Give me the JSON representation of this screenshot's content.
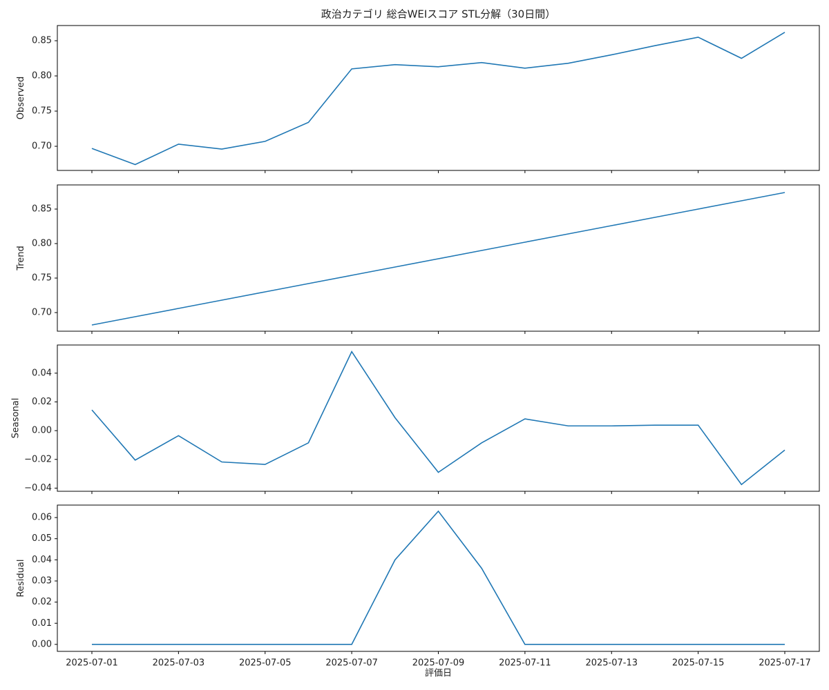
{
  "chart_data": [
    {
      "type": "line",
      "title": "政治カテゴリ 総合WEIスコア STL分解（30日間）",
      "ylabel": "Observed",
      "x": [
        "2025-07-01",
        "2025-07-02",
        "2025-07-03",
        "2025-07-04",
        "2025-07-05",
        "2025-07-06",
        "2025-07-07",
        "2025-07-08",
        "2025-07-09",
        "2025-07-10",
        "2025-07-11",
        "2025-07-12",
        "2025-07-13",
        "2025-07-14",
        "2025-07-15",
        "2025-07-16",
        "2025-07-17"
      ],
      "series": [
        {
          "color": "#1f77b4",
          "values": [
            0.697,
            0.674,
            0.703,
            0.696,
            0.707,
            0.734,
            0.81,
            0.816,
            0.813,
            0.819,
            0.811,
            0.818,
            0.83,
            0.843,
            0.855,
            0.825,
            0.862
          ]
        }
      ],
      "ylim": [
        0.6657,
        0.8716
      ],
      "yticks": [
        {
          "value": 0.7,
          "label": "0.70"
        },
        {
          "value": 0.75,
          "label": "0.75"
        },
        {
          "value": 0.8,
          "label": "0.80"
        },
        {
          "value": 0.85,
          "label": "0.85"
        }
      ]
    },
    {
      "type": "line",
      "ylabel": "Trend",
      "x": [
        "2025-07-01",
        "2025-07-02",
        "2025-07-03",
        "2025-07-04",
        "2025-07-05",
        "2025-07-06",
        "2025-07-07",
        "2025-07-08",
        "2025-07-09",
        "2025-07-10",
        "2025-07-11",
        "2025-07-12",
        "2025-07-13",
        "2025-07-14",
        "2025-07-15",
        "2025-07-16",
        "2025-07-17"
      ],
      "series": [
        {
          "color": "#1f77b4",
          "values": [
            0.682,
            0.694,
            0.706,
            0.718,
            0.73,
            0.742,
            0.754,
            0.766,
            0.778,
            0.79,
            0.802,
            0.814,
            0.826,
            0.838,
            0.85,
            0.862,
            0.874
          ]
        }
      ],
      "ylim": [
        0.673,
        0.885
      ],
      "yticks": [
        {
          "value": 0.7,
          "label": "0.70"
        },
        {
          "value": 0.75,
          "label": "0.75"
        },
        {
          "value": 0.8,
          "label": "0.80"
        },
        {
          "value": 0.85,
          "label": "0.85"
        }
      ]
    },
    {
      "type": "line",
      "ylabel": "Seasonal",
      "x": [
        "2025-07-01",
        "2025-07-02",
        "2025-07-03",
        "2025-07-04",
        "2025-07-05",
        "2025-07-06",
        "2025-07-07",
        "2025-07-08",
        "2025-07-09",
        "2025-07-10",
        "2025-07-11",
        "2025-07-12",
        "2025-07-13",
        "2025-07-14",
        "2025-07-15",
        "2025-07-16",
        "2025-07-17"
      ],
      "series": [
        {
          "color": "#1f77b4",
          "values": [
            0.0144,
            -0.0205,
            -0.0035,
            -0.0218,
            -0.0235,
            -0.0085,
            0.055,
            0.009,
            -0.029,
            -0.0085,
            0.0082,
            0.0033,
            0.0033,
            0.0038,
            0.0038,
            -0.0375,
            -0.0135
          ]
        }
      ],
      "ylim": [
        -0.0422,
        0.0596
      ],
      "yticks": [
        {
          "value": -0.04,
          "label": "−0.04"
        },
        {
          "value": -0.02,
          "label": "−0.02"
        },
        {
          "value": 0,
          "label": "0.00"
        },
        {
          "value": 0.02,
          "label": "0.02"
        },
        {
          "value": 0.04,
          "label": "0.04"
        }
      ]
    },
    {
      "type": "line",
      "ylabel": "Residual",
      "xlabel": "評価日",
      "x": [
        "2025-07-01",
        "2025-07-02",
        "2025-07-03",
        "2025-07-04",
        "2025-07-05",
        "2025-07-06",
        "2025-07-07",
        "2025-07-08",
        "2025-07-09",
        "2025-07-10",
        "2025-07-11",
        "2025-07-12",
        "2025-07-13",
        "2025-07-14",
        "2025-07-15",
        "2025-07-16",
        "2025-07-17"
      ],
      "series": [
        {
          "color": "#1f77b4",
          "values": [
            0,
            0,
            0,
            0,
            0,
            0,
            0,
            0.04,
            0.063,
            0.036,
            0,
            0,
            0,
            0,
            0,
            0,
            0
          ]
        }
      ],
      "ylim": [
        -0.0033,
        0.0659
      ],
      "yticks": [
        {
          "value": 0,
          "label": "0.00"
        },
        {
          "value": 0.01,
          "label": "0.01"
        },
        {
          "value": 0.02,
          "label": "0.02"
        },
        {
          "value": 0.03,
          "label": "0.03"
        },
        {
          "value": 0.04,
          "label": "0.04"
        },
        {
          "value": 0.05,
          "label": "0.05"
        },
        {
          "value": 0.06,
          "label": "0.06"
        }
      ],
      "xticks": [
        "2025-07-01",
        "2025-07-03",
        "2025-07-05",
        "2025-07-07",
        "2025-07-09",
        "2025-07-11",
        "2025-07-13",
        "2025-07-15",
        "2025-07-17"
      ]
    }
  ]
}
